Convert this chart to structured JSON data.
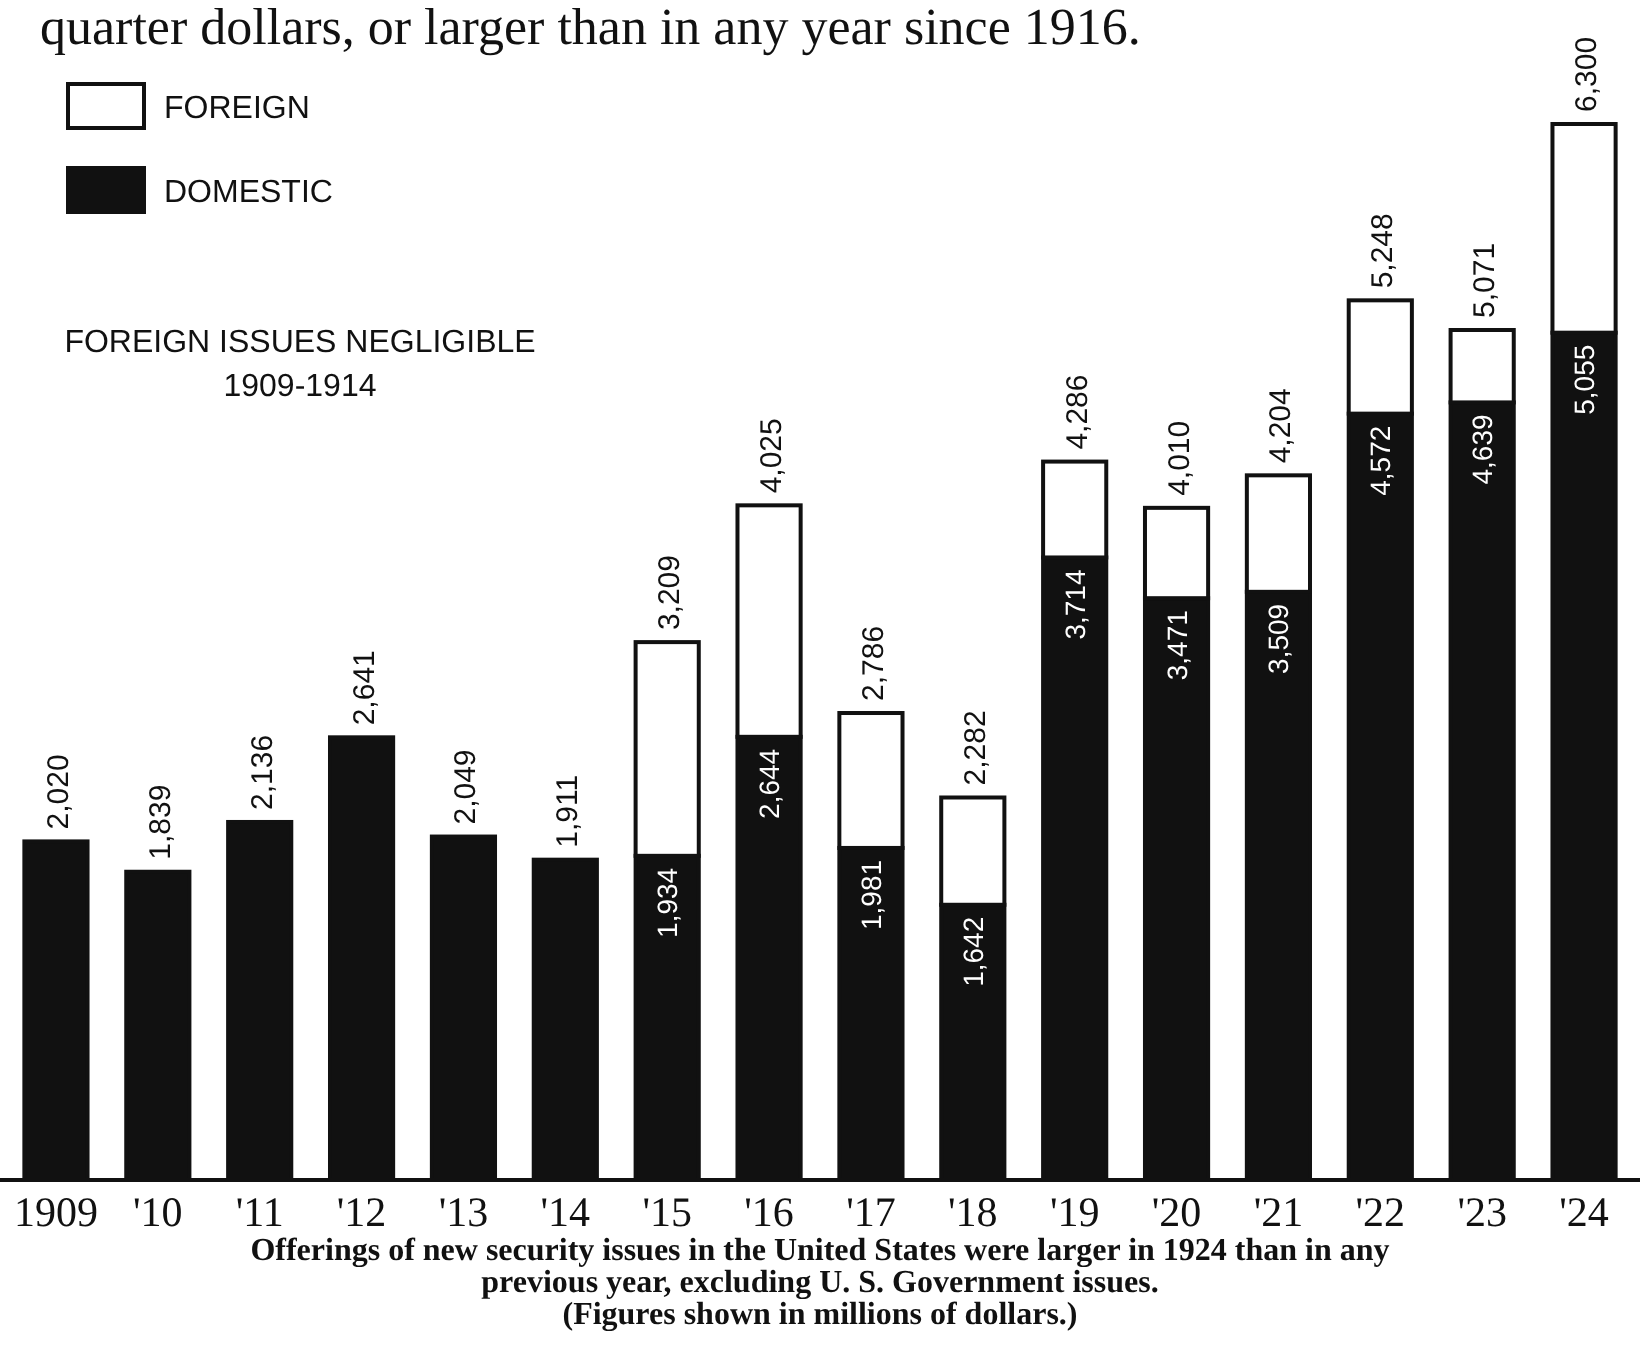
{
  "chart_data": {
    "type": "bar",
    "stacked": true,
    "legend": "top left",
    "categories": [
      "1909",
      "'10",
      "'11",
      "'12",
      "'13",
      "'14",
      "'15",
      "'16",
      "'17",
      "'18",
      "'19",
      "'20",
      "'21",
      "'22",
      "'23",
      "'24"
    ],
    "series": [
      {
        "name": "DOMESTIC",
        "color": "#111111",
        "values": [
          2020,
          1839,
          2136,
          2641,
          2049,
          1911,
          1934,
          2644,
          1981,
          1642,
          3714,
          3471,
          3509,
          4572,
          4639,
          5055
        ],
        "value_labels": [
          null,
          null,
          null,
          null,
          null,
          null,
          "1,934",
          "2,644",
          "1,981",
          "1,642",
          "3,714",
          "3,471",
          "3,509",
          "4,572",
          "4,639",
          "5,055"
        ]
      },
      {
        "name": "FOREIGN",
        "color": "#ffffff",
        "values": [
          null,
          null,
          null,
          null,
          null,
          null,
          1275,
          1381,
          805,
          640,
          572,
          539,
          695,
          676,
          432,
          1245
        ]
      }
    ],
    "totals": [
      "2,020",
      "1,839",
      "2,136",
      "2,641",
      "2,049",
      "1,911",
      "3,209",
      "4,025",
      "2,786",
      "2,282",
      "4,286",
      "4,010",
      "4,204",
      "5,248",
      "5,071",
      "6,300"
    ],
    "annotations": [
      "quarter dollars, or larger than in any year since 1916.",
      "FOREIGN ISSUES NEGLIGIBLE\n1909-1914",
      "Offerings of new security issues in the United States were larger in 1924 than in any\nprevious year, excluding U. S. Government issues.\n(Figures shown in millions of dollars.)"
    ]
  }
}
